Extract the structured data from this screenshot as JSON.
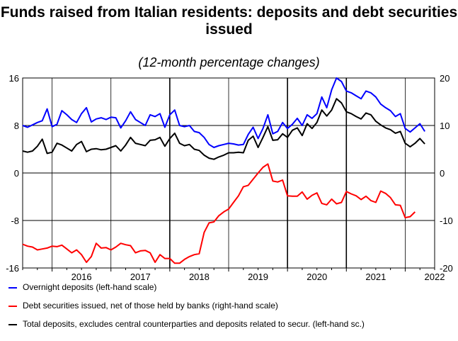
{
  "chart_data": {
    "type": "line",
    "title": "Funds raised from Italian residents: deposits and debt securities issued",
    "subtitle": "(12-month percentage changes)",
    "x_labels": [
      "2016",
      "2017",
      "2018",
      "2019",
      "2020",
      "2021",
      "2022"
    ],
    "x_period": "monthly, Jul 2015 – Nov 2022",
    "left_axis": {
      "ylim": [
        -16,
        16
      ],
      "ticks": [
        "16",
        "8",
        "0",
        "-8",
        "-16"
      ]
    },
    "right_axis": {
      "ylim": [
        -20,
        20
      ],
      "ticks": [
        "20",
        "10",
        "0",
        "-10",
        "-20"
      ]
    },
    "grid": true,
    "legend_position": "bottom",
    "series": [
      {
        "name": "Overnight deposits (left-hand scale)",
        "axis": "left",
        "color": "#0000ff",
        "start": "2015-07",
        "values": [
          8.0,
          7.7,
          8.1,
          8.5,
          8.8,
          10.8,
          7.8,
          8.2,
          10.5,
          9.8,
          9.0,
          8.5,
          10.0,
          11.0,
          8.6,
          9.1,
          9.3,
          9.0,
          9.4,
          9.3,
          7.6,
          8.8,
          10.3,
          9.0,
          8.5,
          8.0,
          9.8,
          9.5,
          10.0,
          7.7,
          9.8,
          10.6,
          8.0,
          7.8,
          8.0,
          7.0,
          6.8,
          6.0,
          4.8,
          4.3,
          4.6,
          4.8,
          5.0,
          4.9,
          4.7,
          4.8,
          6.5,
          7.7,
          5.8,
          7.5,
          9.8,
          6.6,
          7.0,
          8.5,
          7.5,
          8.2,
          9.2,
          8.0,
          9.8,
          9.2,
          10.0,
          12.8,
          11.0,
          14.0,
          16.0,
          15.4,
          13.8,
          13.5,
          13.0,
          12.5,
          13.8,
          13.5,
          12.8,
          11.6,
          11.0,
          10.5,
          9.5,
          10.0,
          7.5,
          6.9,
          7.6,
          8.3,
          7.0
        ]
      },
      {
        "name": "Debt securities issued, net of those held by banks (right-hand scale)",
        "axis": "right",
        "color": "#ff0000",
        "start": "2015-07",
        "values": [
          -15.0,
          -15.4,
          -15.6,
          -16.2,
          -16.0,
          -15.8,
          -15.4,
          -15.5,
          -15.2,
          -16.0,
          -16.8,
          -16.2,
          -17.2,
          -18.8,
          -17.6,
          -14.8,
          -15.8,
          -15.7,
          -16.2,
          -15.6,
          -14.8,
          -15.1,
          -15.3,
          -16.8,
          -16.4,
          -16.3,
          -16.8,
          -18.8,
          -17.2,
          -18.0,
          -18.0,
          -19.0,
          -19.0,
          -18.2,
          -17.6,
          -17.2,
          -17.0,
          -12.5,
          -10.5,
          -10.3,
          -9.0,
          -8.2,
          -7.6,
          -6.2,
          -4.8,
          -2.9,
          -2.6,
          -1.3,
          0.0,
          1.2,
          1.9,
          -1.7,
          -1.9,
          -1.5,
          -4.8,
          -4.9,
          -4.9,
          -4.0,
          -5.5,
          -4.7,
          -4.2,
          -6.4,
          -6.7,
          -5.5,
          -6.5,
          -6.2,
          -3.9,
          -4.4,
          -4.8,
          -5.6,
          -4.9,
          -5.8,
          -6.2,
          -3.8,
          -4.3,
          -5.2,
          -6.7,
          -6.8,
          -9.4,
          -9.2,
          -8.2
        ]
      },
      {
        "name": "Total deposits, excludes central counterparties and deposits related to secur. (left-hand sc.)",
        "axis": "left",
        "color": "#000000",
        "start": "2015-07",
        "values": [
          3.7,
          3.5,
          3.7,
          4.5,
          5.7,
          3.3,
          3.5,
          5.0,
          4.7,
          4.2,
          3.7,
          4.8,
          5.3,
          3.6,
          4.0,
          4.1,
          3.9,
          4.0,
          4.3,
          4.6,
          3.7,
          4.7,
          6.0,
          5.0,
          4.8,
          4.6,
          5.5,
          5.6,
          6.0,
          4.5,
          5.8,
          6.7,
          5.0,
          4.6,
          4.8,
          4.0,
          3.8,
          3.0,
          2.5,
          2.3,
          2.7,
          3.0,
          3.4,
          3.4,
          3.5,
          3.4,
          5.5,
          6.2,
          4.3,
          6.0,
          7.8,
          5.5,
          5.6,
          6.6,
          6.0,
          7.2,
          7.6,
          6.3,
          8.3,
          7.5,
          8.5,
          10.6,
          9.6,
          10.6,
          12.5,
          11.8,
          10.3,
          10.0,
          9.5,
          9.1,
          10.1,
          9.8,
          8.7,
          8.1,
          7.6,
          7.3,
          6.7,
          7.0,
          5.0,
          4.4,
          5.0,
          5.8,
          4.9
        ]
      }
    ]
  }
}
